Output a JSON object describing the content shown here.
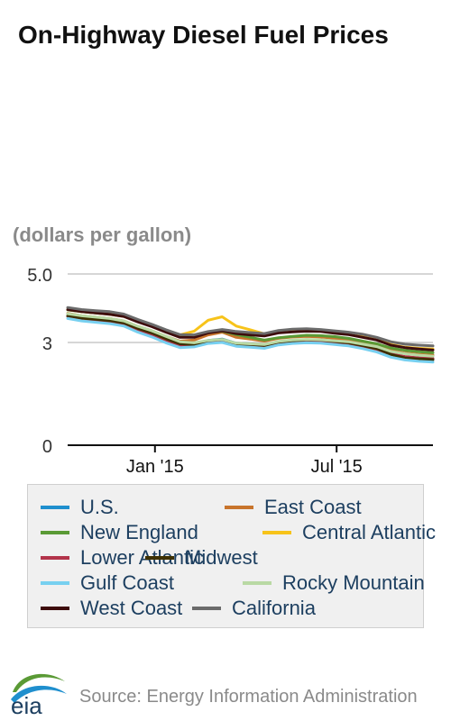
{
  "chart_data": {
    "type": "line",
    "title": "On-Highway Diesel Fuel Prices",
    "ylabel": "(dollars per gallon)",
    "xlabel": "",
    "ylim": [
      0,
      5.0
    ],
    "yticks": [
      "5.0",
      "3",
      "0"
    ],
    "ytick_values": [
      5.0,
      3,
      0
    ],
    "xticks": [
      "Jan '15",
      "Jul '15"
    ],
    "xtick_dates": [
      "2015-01-01",
      "2015-07-01"
    ],
    "x_range": [
      "2014-10-06",
      "2015-10-05"
    ],
    "grid": true,
    "legend_position": "bottom",
    "x": [
      "2014-10-06",
      "2014-10-20",
      "2014-11-03",
      "2014-11-17",
      "2014-12-01",
      "2014-12-15",
      "2014-12-29",
      "2015-01-12",
      "2015-01-26",
      "2015-02-09",
      "2015-02-23",
      "2015-03-09",
      "2015-03-23",
      "2015-04-06",
      "2015-04-20",
      "2015-05-04",
      "2015-05-18",
      "2015-06-01",
      "2015-06-15",
      "2015-06-29",
      "2015-07-13",
      "2015-07-27",
      "2015-08-10",
      "2015-08-24",
      "2015-09-07",
      "2015-09-21",
      "2015-10-05"
    ],
    "series": [
      {
        "name": "U.S.",
        "color": "#1f8fce",
        "values": [
          3.77,
          3.7,
          3.66,
          3.62,
          3.55,
          3.39,
          3.26,
          3.1,
          2.95,
          2.95,
          3.06,
          3.1,
          2.98,
          2.96,
          2.92,
          3.02,
          3.06,
          3.08,
          3.07,
          3.03,
          2.99,
          2.92,
          2.83,
          2.67,
          2.58,
          2.55,
          2.53
        ]
      },
      {
        "name": "East Coast",
        "color": "#c8742c",
        "values": [
          3.85,
          3.78,
          3.74,
          3.7,
          3.63,
          3.47,
          3.34,
          3.18,
          3.04,
          3.07,
          3.22,
          3.3,
          3.15,
          3.1,
          3.04,
          3.12,
          3.16,
          3.18,
          3.16,
          3.12,
          3.08,
          3.01,
          2.92,
          2.77,
          2.69,
          2.65,
          2.63
        ]
      },
      {
        "name": "New England",
        "color": "#5a9a35",
        "values": [
          3.95,
          3.9,
          3.86,
          3.83,
          3.77,
          3.64,
          3.52,
          3.36,
          3.21,
          3.2,
          3.29,
          3.33,
          3.23,
          3.15,
          3.07,
          3.14,
          3.18,
          3.21,
          3.2,
          3.17,
          3.12,
          3.04,
          2.96,
          2.84,
          2.77,
          2.73,
          2.7
        ]
      },
      {
        "name": "Central Atlantic",
        "color": "#f7c31a",
        "values": [
          3.96,
          3.9,
          3.86,
          3.82,
          3.76,
          3.61,
          3.48,
          3.33,
          3.22,
          3.33,
          3.65,
          3.75,
          3.48,
          3.37,
          3.25,
          3.33,
          3.37,
          3.38,
          3.35,
          3.3,
          3.25,
          3.17,
          3.08,
          2.94,
          2.86,
          2.83,
          2.81
        ]
      },
      {
        "name": "Lower Atlantic",
        "color": "#b2334a",
        "values": [
          3.76,
          3.69,
          3.64,
          3.6,
          3.52,
          3.35,
          3.2,
          3.04,
          2.9,
          2.92,
          3.02,
          3.07,
          2.95,
          2.93,
          2.9,
          2.99,
          3.03,
          3.05,
          3.04,
          3.0,
          2.96,
          2.89,
          2.8,
          2.66,
          2.59,
          2.55,
          2.53
        ]
      },
      {
        "name": "Midwest",
        "color": "#3d3000",
        "values": [
          3.78,
          3.71,
          3.68,
          3.64,
          3.57,
          3.41,
          3.28,
          3.11,
          2.96,
          2.94,
          3.05,
          3.09,
          2.96,
          2.94,
          2.91,
          3.01,
          3.05,
          3.08,
          3.07,
          3.03,
          2.99,
          2.91,
          2.82,
          2.65,
          2.55,
          2.52,
          2.5
        ]
      },
      {
        "name": "Gulf Coast",
        "color": "#77d0f0",
        "values": [
          3.7,
          3.63,
          3.59,
          3.55,
          3.48,
          3.3,
          3.16,
          2.99,
          2.85,
          2.87,
          2.97,
          3.0,
          2.89,
          2.86,
          2.83,
          2.93,
          2.97,
          2.99,
          2.98,
          2.94,
          2.9,
          2.82,
          2.72,
          2.57,
          2.49,
          2.45,
          2.43
        ]
      },
      {
        "name": "Rocky Mountain",
        "color": "#b9d9a4",
        "values": [
          3.84,
          3.78,
          3.74,
          3.7,
          3.63,
          3.47,
          3.34,
          3.18,
          3.02,
          2.99,
          3.06,
          3.09,
          2.98,
          2.96,
          2.94,
          3.03,
          3.07,
          3.09,
          3.08,
          3.05,
          3.02,
          2.95,
          2.88,
          2.74,
          2.67,
          2.63,
          2.6
        ]
      },
      {
        "name": "West Coast",
        "color": "#3d0c0c",
        "values": [
          3.96,
          3.9,
          3.86,
          3.82,
          3.76,
          3.6,
          3.46,
          3.3,
          3.15,
          3.15,
          3.28,
          3.34,
          3.26,
          3.22,
          3.19,
          3.28,
          3.31,
          3.33,
          3.32,
          3.27,
          3.23,
          3.15,
          3.07,
          2.92,
          2.85,
          2.81,
          2.78
        ]
      },
      {
        "name": "California",
        "color": "#6b6b6b",
        "values": [
          4.02,
          3.96,
          3.93,
          3.9,
          3.83,
          3.67,
          3.53,
          3.37,
          3.23,
          3.22,
          3.32,
          3.38,
          3.32,
          3.29,
          3.26,
          3.35,
          3.39,
          3.4,
          3.38,
          3.34,
          3.3,
          3.24,
          3.15,
          3.02,
          2.95,
          2.92,
          2.9
        ]
      }
    ]
  },
  "source": "Source: Energy Information Administration",
  "logo_text": "eia"
}
